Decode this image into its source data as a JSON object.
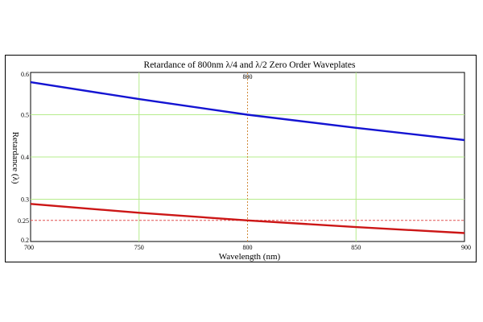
{
  "chart_data": {
    "type": "line",
    "title": "Retardance of 800nm  λ/4 and λ/2 Zero Order Waveplates",
    "xlabel": "Wavelength (nm)",
    "ylabel": "Retardance (λ)",
    "xlim": [
      700,
      900
    ],
    "ylim": [
      0.2,
      0.6
    ],
    "x_ticks": [
      700,
      750,
      800,
      850,
      900
    ],
    "x_tick_labels": [
      "700",
      "750",
      "800",
      "850",
      "900"
    ],
    "y_ticks": [
      0.2,
      0.25,
      0.3,
      0.4,
      0.5,
      0.6
    ],
    "y_tick_labels": [
      "0.2",
      "0.25",
      "0.3",
      "0.4",
      "0.5",
      "0.6"
    ],
    "grid": true,
    "vertical_marker": {
      "x": 800,
      "label": "800",
      "color": "#d08a3a"
    },
    "reference_line": {
      "y": 0.25,
      "color": "#e05050"
    },
    "series": [
      {
        "color": "#1414d2",
        "x": [
          700,
          750,
          800,
          850,
          900
        ],
        "values": [
          0.577,
          0.537,
          0.5,
          0.469,
          0.44
        ]
      },
      {
        "color": "#cc1616",
        "x": [
          700,
          750,
          800,
          850,
          900
        ],
        "values": [
          0.289,
          0.268,
          0.25,
          0.234,
          0.22
        ]
      }
    ]
  }
}
